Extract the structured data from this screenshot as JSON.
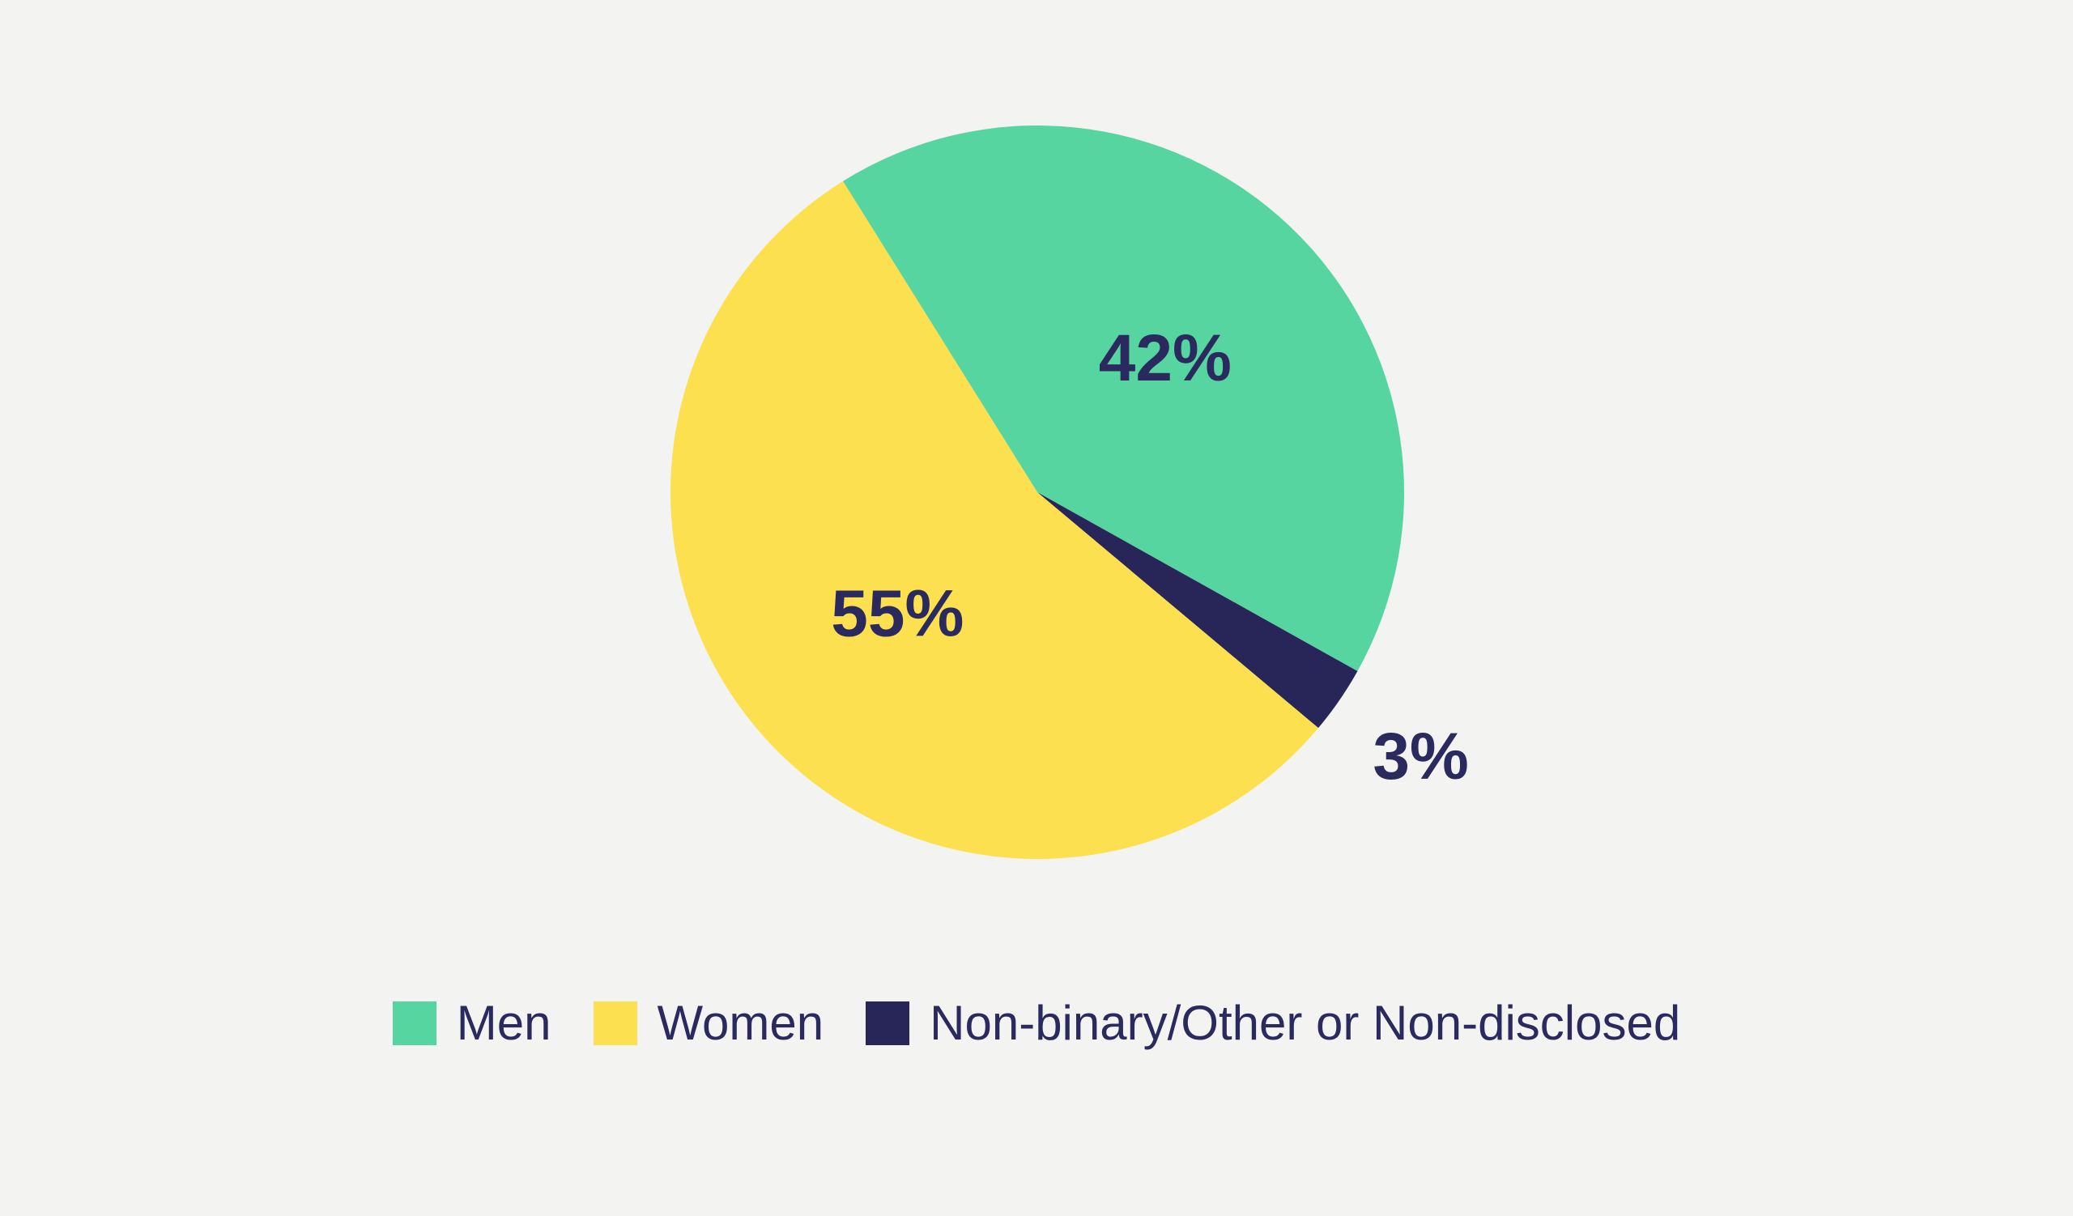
{
  "page": {
    "background_color": "#f3f3f1",
    "text_color": "#2b2a5e"
  },
  "chart_data": {
    "type": "pie",
    "title": "",
    "start_angle_deg": -32,
    "value_label_color": "#2b2a5e",
    "legend_position": "bottom-center",
    "slices_clockwise": [
      {
        "label": "Men",
        "value": 42,
        "value_label": "42%",
        "color": "#57d5a0",
        "label_placement": "inside"
      },
      {
        "label": "Non-binary/Other or Non-disclosed",
        "value": 3,
        "value_label": "3%",
        "color": "#282559",
        "label_placement": "outside"
      },
      {
        "label": "Women",
        "value": 55,
        "value_label": "55%",
        "color": "#fde04f",
        "label_placement": "inside"
      }
    ]
  },
  "legend": {
    "items": [
      {
        "label": "Men",
        "color": "#57d5a0"
      },
      {
        "label": "Women",
        "color": "#fde04f"
      },
      {
        "label": "Non-binary/Other or Non-disclosed",
        "color": "#282559"
      }
    ]
  }
}
